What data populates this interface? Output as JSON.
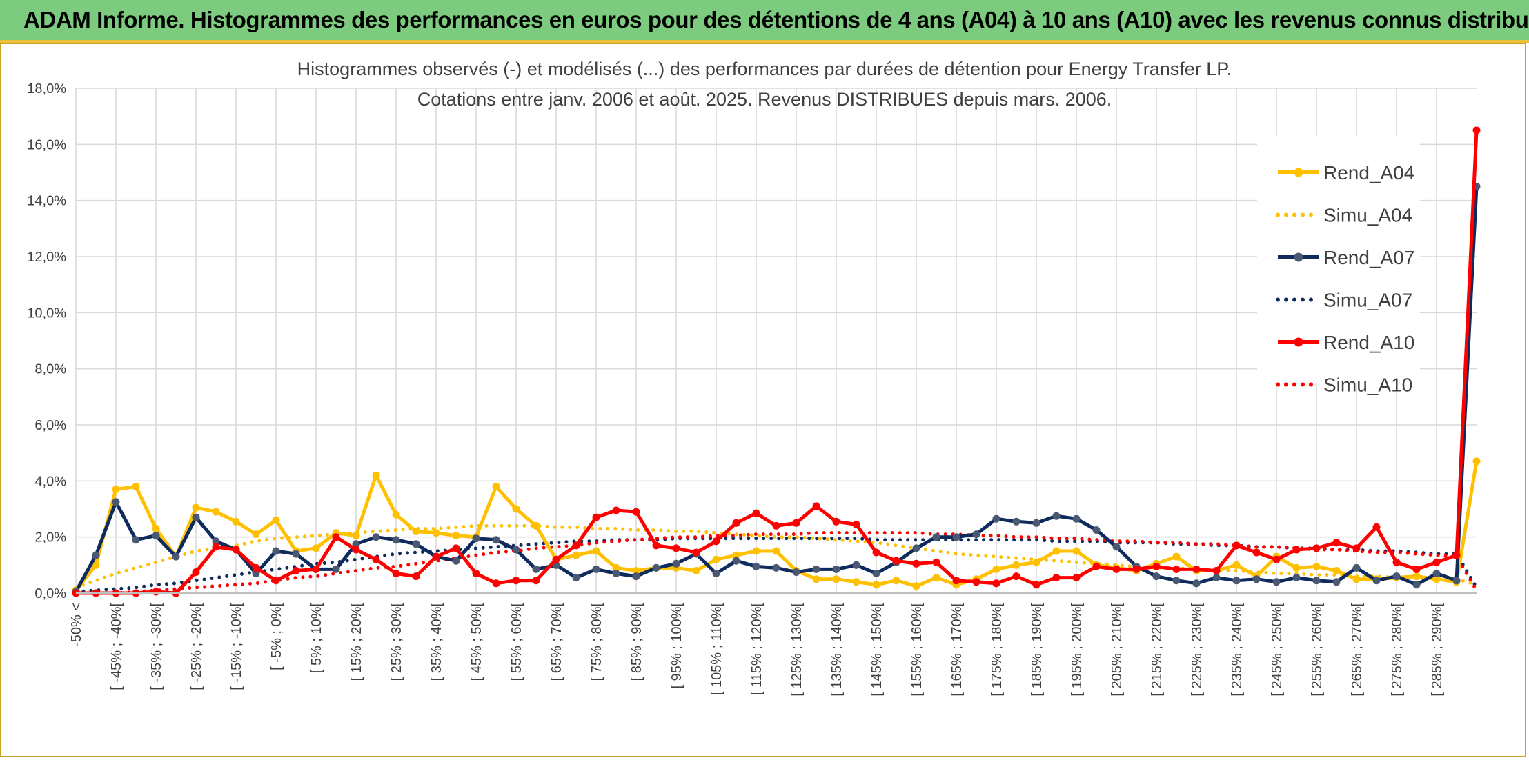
{
  "banner": {
    "title": "ADAM Informe. Histogrammes des performances en euros pour des détentions de 4 ans (A04) à 10 ans (A10) avec les revenus connus distribués"
  },
  "colors": {
    "banner_bg": "#7ccb7e",
    "A04": "#ffc000",
    "A07": "#0f2a5c",
    "A10": "#ff0000",
    "grid": "#d9d9d9"
  },
  "chart_data": {
    "type": "line",
    "title_line1": "Histogrammes observés (-) et modélisés (...) des performances par durées de détention pour Energy Transfer LP.",
    "title_line2": "Cotations entre janv. 2006 et août. 2025. Revenus DISTRIBUES depuis mars. 2006.",
    "ylim": [
      0,
      18
    ],
    "y_tick_step": 2,
    "y_tick_format": "percent_one_decimal_comma",
    "grid": true,
    "legend_position": "top-right",
    "x_tick_labels": [
      "-50% <",
      "[ -45% ; -40%[",
      "[ -35% ; -30%[",
      "[ -25% ; -20%[",
      "[ -15% ; -10%[",
      "[ -5% ; 0%[",
      "[ 5% ; 10%[",
      "[ 15% ; 20%[",
      "[ 25% ; 30%[",
      "[ 35% ; 40%[",
      "[ 45% ; 50%[",
      "[ 55% ; 60%[",
      "[ 65% ; 70%[",
      "[ 75% ; 80%[",
      "[ 85% ; 90%[",
      "[ 95% ; 100%[",
      "[ 105% ; 110%[",
      "[ 115% ; 120%[",
      "[ 125% ; 130%[",
      "[ 135% ; 140%[",
      "[ 145% ; 150%[",
      "[ 155% ; 160%[",
      "[ 165% ; 170%[",
      "[ 175% ; 180%[",
      "[ 185% ; 190%[",
      "[ 195% ; 200%[",
      "[ 205% ; 210%[",
      "[ 215% ; 220%[",
      "[ 225% ; 230%[",
      "[ 235% ; 240%[",
      "[ 245% ; 250%[",
      "[ 255% ; 260%[",
      "[ 265% ; 270%[",
      "[ 275% ; 280%[",
      "[ 285% ; 290%["
    ],
    "series": [
      {
        "name": "Rend_A04",
        "style": "solid",
        "color": "#ffc000",
        "values": [
          0.1,
          1.0,
          3.7,
          3.8,
          2.3,
          1.3,
          3.05,
          2.9,
          2.55,
          2.1,
          2.6,
          1.5,
          1.6,
          2.15,
          2.05,
          4.2,
          2.8,
          2.2,
          2.15,
          2.05,
          2.0,
          3.8,
          3.0,
          2.4,
          1.2,
          1.35,
          1.5,
          0.9,
          0.8,
          0.9,
          0.9,
          0.8,
          1.2,
          1.35,
          1.5,
          1.5,
          0.8,
          0.5,
          0.5,
          0.4,
          0.3,
          0.45,
          0.25,
          0.55,
          0.3,
          0.5,
          0.85,
          1.0,
          1.1,
          1.5,
          1.5,
          1.0,
          0.9,
          0.8,
          1.05,
          1.3,
          0.8,
          0.8,
          1.0,
          0.6,
          1.3,
          0.9,
          0.95,
          0.8,
          0.5,
          0.5,
          0.55,
          0.6,
          0.5,
          0.4,
          4.7
        ]
      },
      {
        "name": "Simu_A04",
        "style": "dotted",
        "color": "#ffc000",
        "values": [
          0.2,
          0.45,
          0.7,
          0.9,
          1.1,
          1.3,
          1.5,
          1.6,
          1.7,
          1.85,
          1.95,
          2.0,
          2.05,
          2.1,
          2.15,
          2.2,
          2.25,
          2.3,
          2.3,
          2.35,
          2.4,
          2.4,
          2.4,
          2.4,
          2.35,
          2.35,
          2.3,
          2.3,
          2.25,
          2.25,
          2.2,
          2.2,
          2.15,
          2.1,
          2.05,
          2.0,
          2.0,
          1.95,
          1.9,
          1.85,
          1.8,
          1.7,
          1.6,
          1.5,
          1.4,
          1.35,
          1.3,
          1.25,
          1.2,
          1.15,
          1.1,
          1.05,
          1.0,
          0.95,
          0.9,
          0.9,
          0.85,
          0.8,
          0.8,
          0.75,
          0.7,
          0.7,
          0.65,
          0.65,
          0.6,
          0.6,
          0.55,
          0.55,
          0.5,
          0.5,
          0.3
        ]
      },
      {
        "name": "Rend_A07",
        "style": "solid",
        "color": "#0f2a5c",
        "values": [
          0.05,
          1.35,
          3.25,
          1.9,
          2.05,
          1.3,
          2.7,
          1.85,
          1.55,
          0.7,
          1.5,
          1.4,
          0.85,
          0.85,
          1.75,
          2.0,
          1.9,
          1.75,
          1.3,
          1.15,
          1.95,
          1.9,
          1.55,
          0.85,
          1.0,
          0.55,
          0.85,
          0.7,
          0.6,
          0.9,
          1.05,
          1.4,
          0.7,
          1.15,
          0.95,
          0.9,
          0.75,
          0.85,
          0.85,
          1.0,
          0.7,
          1.1,
          1.6,
          2.0,
          2.0,
          2.1,
          2.65,
          2.55,
          2.5,
          2.75,
          2.65,
          2.25,
          1.65,
          0.95,
          0.6,
          0.45,
          0.35,
          0.55,
          0.45,
          0.5,
          0.4,
          0.55,
          0.45,
          0.4,
          0.9,
          0.45,
          0.6,
          0.3,
          0.7,
          0.45,
          14.5
        ]
      },
      {
        "name": "Simu_A07",
        "style": "dotted",
        "color": "#0f2a5c",
        "values": [
          0.05,
          0.1,
          0.15,
          0.2,
          0.3,
          0.35,
          0.45,
          0.55,
          0.65,
          0.75,
          0.85,
          0.95,
          1.05,
          1.1,
          1.2,
          1.3,
          1.4,
          1.45,
          1.5,
          1.55,
          1.6,
          1.65,
          1.7,
          1.75,
          1.8,
          1.85,
          1.85,
          1.9,
          1.9,
          1.9,
          1.95,
          1.95,
          1.95,
          1.95,
          1.95,
          1.95,
          1.95,
          1.95,
          1.95,
          1.95,
          1.9,
          1.9,
          1.9,
          1.9,
          1.9,
          1.9,
          1.9,
          1.9,
          1.9,
          1.85,
          1.85,
          1.85,
          1.8,
          1.8,
          1.8,
          1.75,
          1.75,
          1.7,
          1.7,
          1.65,
          1.65,
          1.6,
          1.6,
          1.55,
          1.55,
          1.5,
          1.5,
          1.45,
          1.4,
          1.4,
          0.2
        ]
      },
      {
        "name": "Rend_A10",
        "style": "solid",
        "color": "#ff0000",
        "values": [
          0.0,
          0.0,
          0.0,
          0.0,
          0.05,
          0.0,
          0.75,
          1.65,
          1.55,
          0.9,
          0.45,
          0.8,
          0.85,
          2.0,
          1.55,
          1.2,
          0.7,
          0.6,
          1.3,
          1.6,
          0.7,
          0.35,
          0.45,
          0.45,
          1.2,
          1.7,
          2.7,
          2.95,
          2.9,
          1.7,
          1.6,
          1.45,
          1.85,
          2.5,
          2.85,
          2.4,
          2.5,
          3.1,
          2.55,
          2.45,
          1.45,
          1.15,
          1.05,
          1.1,
          0.45,
          0.4,
          0.35,
          0.6,
          0.3,
          0.55,
          0.55,
          0.95,
          0.85,
          0.85,
          0.95,
          0.85,
          0.85,
          0.8,
          1.7,
          1.45,
          1.2,
          1.55,
          1.6,
          1.8,
          1.6,
          2.35,
          1.1,
          0.85,
          1.1,
          1.35,
          16.5
        ]
      },
      {
        "name": "Simu_A10",
        "style": "dotted",
        "color": "#ff0000",
        "values": [
          0.0,
          0.0,
          0.0,
          0.05,
          0.1,
          0.15,
          0.2,
          0.25,
          0.3,
          0.35,
          0.45,
          0.55,
          0.6,
          0.7,
          0.8,
          0.9,
          0.95,
          1.05,
          1.15,
          1.25,
          1.35,
          1.45,
          1.5,
          1.6,
          1.65,
          1.7,
          1.8,
          1.85,
          1.9,
          1.95,
          2.0,
          2.0,
          2.05,
          2.05,
          2.1,
          2.1,
          2.1,
          2.15,
          2.15,
          2.15,
          2.15,
          2.15,
          2.15,
          2.1,
          2.1,
          2.05,
          2.05,
          2.0,
          2.0,
          1.95,
          1.95,
          1.9,
          1.85,
          1.85,
          1.8,
          1.8,
          1.75,
          1.75,
          1.7,
          1.65,
          1.65,
          1.6,
          1.55,
          1.55,
          1.5,
          1.45,
          1.45,
          1.4,
          1.35,
          1.3,
          0.1
        ]
      }
    ]
  }
}
